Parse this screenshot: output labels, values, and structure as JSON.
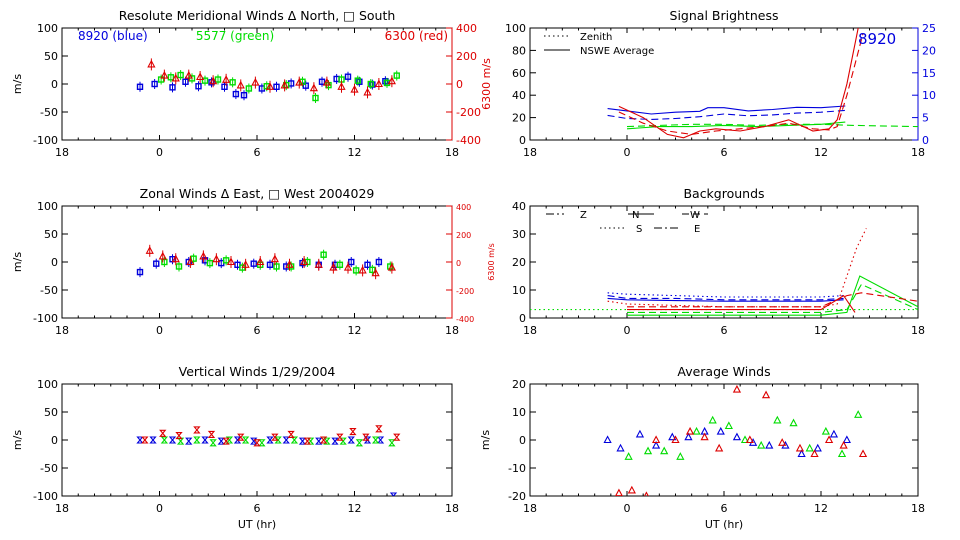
{
  "colors": {
    "blue": "#0000dd",
    "green": "#00dd00",
    "red": "#dd0000",
    "black": "#000000"
  },
  "chart_data": [
    {
      "id": "meridional",
      "type": "scatter",
      "title": "Resolute Meridional Winds Δ North, □ South",
      "ylabel": "m/s",
      "y2label": "6300 m/s",
      "ylim": [
        -100,
        100
      ],
      "y2lim": [
        -400,
        400
      ],
      "xlim": [
        -6,
        18
      ],
      "xticks": [
        "18",
        "0",
        "6",
        "12",
        "18"
      ],
      "yticks": [
        "100",
        "50",
        "0",
        "-50",
        "-100"
      ],
      "y2ticks": [
        "400",
        "200",
        "0",
        "-200",
        "-400"
      ],
      "legend": [
        {
          "label": "8920 (blue)",
          "color": "blue"
        },
        {
          "label": "5577 (green)",
          "color": "green"
        },
        {
          "label": "6300 (red)",
          "color": "red"
        }
      ],
      "series": [
        {
          "name": "8920 (blue)",
          "color": "blue",
          "marker": "square",
          "x": [
            -1.2,
            -0.3,
            0.8,
            1.6,
            2.4,
            3.2,
            4.0,
            4.7,
            5.2,
            6.3,
            7.2,
            8.1,
            9.0,
            10.0,
            10.9,
            11.6,
            12.3,
            13.1,
            13.9
          ],
          "y": [
            -5,
            0,
            -6,
            4,
            -4,
            3,
            -5,
            -18,
            -20,
            -8,
            -5,
            1,
            -3,
            4,
            9,
            13,
            4,
            -1,
            5
          ]
        },
        {
          "name": "5577 (green)",
          "color": "green",
          "marker": "square",
          "x": [
            0.1,
            0.7,
            1.3,
            2.0,
            2.8,
            3.6,
            4.5,
            5.5,
            6.6,
            7.8,
            8.8,
            9.6,
            10.4,
            11.2,
            12.2,
            13.0,
            14.0,
            14.6
          ],
          "y": [
            8,
            12,
            16,
            10,
            6,
            8,
            3,
            -8,
            -4,
            -2,
            4,
            -25,
            -2,
            8,
            6,
            0,
            2,
            15
          ]
        },
        {
          "name": "6300 (red)",
          "color": "red",
          "marker": "triangle",
          "x": [
            -0.5,
            0.3,
            1.0,
            1.8,
            2.5,
            3.3,
            4.1,
            5.0,
            5.9,
            6.8,
            7.7,
            8.6,
            9.5,
            10.3,
            11.2,
            12.0,
            12.8,
            13.5,
            14.3
          ],
          "y": [
            140,
            60,
            40,
            60,
            50,
            20,
            30,
            -10,
            10,
            -20,
            -10,
            10,
            -30,
            10,
            -20,
            -40,
            -60,
            0,
            20
          ]
        }
      ]
    },
    {
      "id": "brightness",
      "type": "line",
      "title": "Signal Brightness",
      "annotation": "8920",
      "ylim": [
        0,
        100
      ],
      "y2lim": [
        0,
        25
      ],
      "xlim": [
        -6,
        18
      ],
      "xticks": [
        "18",
        "0",
        "6",
        "12",
        "18"
      ],
      "yticks": [
        "100",
        "80",
        "60",
        "40",
        "20",
        "0"
      ],
      "y2ticks": [
        "25",
        "20",
        "15",
        "10",
        "5",
        "0"
      ],
      "legend": [
        {
          "label": "Zenith",
          "style": "dotted"
        },
        {
          "label": "NSWE Average",
          "style": "solid"
        }
      ],
      "series": [
        {
          "name": "8920 (blue)",
          "color": "blue",
          "axis": "right",
          "style": "solid",
          "x": [
            -1.2,
            0,
            1.5,
            3,
            4.5,
            5,
            6,
            7.5,
            9,
            10.5,
            12,
            13.5
          ],
          "y": [
            7,
            6.5,
            5.8,
            6.2,
            6.4,
            7.2,
            7.2,
            6.5,
            6.8,
            7.3,
            7.2,
            7.6
          ]
        },
        {
          "name": "8920 (blue)",
          "color": "blue",
          "axis": "right",
          "style": "dashed",
          "x": [
            -1.2,
            0,
            1.5,
            3,
            4.5,
            6,
            7.5,
            9,
            10.5,
            12,
            13.5
          ],
          "y": [
            5.5,
            4.8,
            4.6,
            4.8,
            5.2,
            5.8,
            5.4,
            5.6,
            6.0,
            6.2,
            6.6
          ]
        },
        {
          "name": "5577 (green)",
          "color": "green",
          "axis": "left",
          "style": "solid",
          "x": [
            0,
            2,
            4,
            6,
            8,
            10,
            12,
            13.5
          ],
          "y": [
            10,
            12,
            12,
            13,
            12,
            13,
            14,
            16
          ]
        },
        {
          "name": "5577 (green)",
          "color": "green",
          "axis": "left",
          "style": "dashed",
          "x": [
            0,
            2,
            4,
            6,
            8,
            10,
            12,
            14,
            18
          ],
          "y": [
            12,
            13,
            14,
            14,
            13,
            14,
            14,
            13,
            12
          ]
        },
        {
          "name": "6300 (red)",
          "color": "red",
          "axis": "left",
          "style": "solid",
          "x": [
            -0.5,
            1,
            2.5,
            3.5,
            4.5,
            5.5,
            7,
            8.5,
            10,
            11.5,
            12.5,
            13,
            13.6,
            14.3
          ],
          "y": [
            30,
            20,
            5,
            2,
            8,
            10,
            8,
            12,
            18,
            8,
            10,
            18,
            50,
            100
          ]
        },
        {
          "name": "6300 (red)",
          "color": "red",
          "axis": "left",
          "style": "dashed",
          "x": [
            -0.5,
            1,
            2.5,
            4,
            5.5,
            7,
            8.5,
            10,
            11.5,
            12.5,
            13,
            13.6,
            14.6
          ],
          "y": [
            25,
            15,
            8,
            5,
            8,
            10,
            12,
            15,
            10,
            9,
            12,
            40,
            95
          ]
        }
      ]
    },
    {
      "id": "zonal",
      "type": "scatter",
      "title": "Zonal Winds Δ East, □ West 2004029",
      "ylabel": "m/s",
      "y2label": "6300 m/s",
      "ylim": [
        -100,
        100
      ],
      "y2lim": [
        -400,
        400
      ],
      "xlim": [
        -6,
        18
      ],
      "xticks": [
        "18",
        "0",
        "6",
        "12",
        "18"
      ],
      "yticks": [
        "100",
        "50",
        "0",
        "-50",
        "-100"
      ],
      "y2ticks": [
        "400",
        "200",
        "0",
        "-200",
        "-400"
      ],
      "series": [
        {
          "name": "8920 (blue)",
          "color": "blue",
          "marker": "square",
          "x": [
            -1.2,
            -0.2,
            0.8,
            1.8,
            2.8,
            3.8,
            4.8,
            5.8,
            6.8,
            7.8,
            8.8,
            9.8,
            10.8,
            11.8,
            12.8,
            13.5
          ],
          "y": [
            -18,
            -3,
            5,
            0,
            3,
            -2,
            -5,
            -3,
            -5,
            -8,
            -2,
            -5,
            -5,
            0,
            -5,
            0
          ]
        },
        {
          "name": "5577 (green)",
          "color": "green",
          "marker": "square",
          "x": [
            0.3,
            1.2,
            2.1,
            3.1,
            4.1,
            5.1,
            6.2,
            7.2,
            8.1,
            9.1,
            10.1,
            11.1,
            12.1,
            13.1,
            14.2
          ],
          "y": [
            0,
            -8,
            6,
            -2,
            3,
            -10,
            -5,
            -8,
            -8,
            0,
            13,
            -5,
            -15,
            -14,
            -8
          ]
        },
        {
          "name": "6300 (red)",
          "color": "red",
          "marker": "triangle",
          "x": [
            -0.6,
            0.2,
            1.0,
            1.9,
            2.7,
            3.5,
            4.4,
            5.3,
            6.2,
            7.1,
            8.0,
            8.9,
            9.8,
            10.7,
            11.6,
            12.5,
            13.3,
            14.3
          ],
          "y": [
            80,
            40,
            20,
            0,
            40,
            20,
            0,
            -20,
            0,
            20,
            -20,
            0,
            -20,
            -40,
            -40,
            -60,
            -80,
            -40
          ]
        }
      ]
    },
    {
      "id": "backgrounds",
      "type": "line",
      "title": "Backgrounds",
      "ylim": [
        0,
        40
      ],
      "xlim": [
        -6,
        18
      ],
      "xticks": [
        "18",
        "0",
        "6",
        "12",
        "18"
      ],
      "yticks": [
        "40",
        "30",
        "20",
        "10",
        "0"
      ],
      "legend": [
        {
          "label": "Z",
          "style": "dashdotdot"
        },
        {
          "label": "N",
          "style": "solid"
        },
        {
          "label": "W",
          "style": "dashed"
        },
        {
          "label": "S",
          "style": "dotted"
        },
        {
          "label": "E",
          "style": "dashdot"
        }
      ],
      "series": [
        {
          "name": "8920 Z",
          "color": "blue",
          "style": "dotted",
          "x": [
            -1.2,
            0,
            3,
            6,
            9,
            12,
            13.4
          ],
          "y": [
            9,
            8.5,
            8,
            7.5,
            7.5,
            7.5,
            8
          ]
        },
        {
          "name": "8920 N",
          "color": "blue",
          "style": "solid",
          "x": [
            -1.2,
            0,
            3,
            6,
            9,
            12,
            13.4
          ],
          "y": [
            7,
            6.5,
            6.2,
            6,
            6,
            6,
            6.5
          ]
        },
        {
          "name": "8920 W",
          "color": "blue",
          "style": "dashed",
          "x": [
            -1.2,
            0,
            3,
            6,
            9,
            12,
            13.4
          ],
          "y": [
            8,
            7,
            7,
            6.5,
            6.5,
            6.5,
            7
          ]
        },
        {
          "name": "5577 Z",
          "color": "green",
          "style": "dotted",
          "x": [
            -6,
            0,
            6,
            12,
            18
          ],
          "y": [
            3,
            3,
            3,
            3,
            3
          ]
        },
        {
          "name": "5577 N",
          "color": "green",
          "style": "solid",
          "x": [
            0,
            6,
            12,
            13.6,
            14.4,
            18
          ],
          "y": [
            1,
            1,
            1,
            2,
            15,
            4
          ]
        },
        {
          "name": "5577 W",
          "color": "green",
          "style": "dashed",
          "x": [
            0,
            6,
            12,
            13.6,
            14.5,
            18
          ],
          "y": [
            2,
            2,
            2,
            3,
            12,
            3
          ]
        },
        {
          "name": "6300 Z",
          "color": "red",
          "style": "dotted",
          "x": [
            -1.2,
            0,
            6,
            12,
            13,
            13.6,
            14.2,
            14.8
          ],
          "y": [
            6,
            5,
            4,
            4,
            5,
            15,
            25,
            32
          ]
        },
        {
          "name": "6300 N",
          "color": "red",
          "style": "solid",
          "x": [
            0,
            6,
            12,
            13.4,
            14.1
          ],
          "y": [
            3,
            3,
            3,
            8,
            2
          ]
        },
        {
          "name": "6300 W",
          "color": "red",
          "style": "dashed",
          "x": [
            0,
            6,
            12,
            13.6,
            14.5,
            18
          ],
          "y": [
            4,
            4,
            4,
            8,
            9,
            6
          ]
        }
      ]
    },
    {
      "id": "vertical",
      "type": "scatter",
      "title": "Vertical Winds 1/29/2004",
      "ylabel": "m/s",
      "xlabel": "UT (hr)",
      "ylim": [
        -100,
        100
      ],
      "xlim": [
        -6,
        18
      ],
      "xticks": [
        "18",
        "0",
        "6",
        "12",
        "18"
      ],
      "yticks": [
        "100",
        "50",
        "0",
        "-50",
        "-100"
      ],
      "series": [
        {
          "name": "8920 (blue)",
          "color": "blue",
          "marker": "hourglass",
          "x": [
            -1.2,
            -0.4,
            0.8,
            1.8,
            2.8,
            3.8,
            4.8,
            5.8,
            6.8,
            7.8,
            8.8,
            9.8,
            10.8,
            11.8,
            12.8,
            13.6,
            14.4
          ],
          "y": [
            0,
            0,
            0,
            -2,
            0,
            -2,
            0,
            -2,
            0,
            0,
            -2,
            -2,
            -2,
            0,
            0,
            0,
            -100
          ]
        },
        {
          "name": "5577 (green)",
          "color": "green",
          "marker": "hourglass",
          "x": [
            0.3,
            1.3,
            2.3,
            3.3,
            4.3,
            5.3,
            6.3,
            7.3,
            8.3,
            9.3,
            10.3,
            11.3,
            12.3,
            13.3,
            14.3
          ],
          "y": [
            0,
            -2,
            0,
            -5,
            0,
            0,
            -5,
            0,
            0,
            -2,
            -2,
            -2,
            -5,
            0,
            -5
          ]
        },
        {
          "name": "6300 (red)",
          "color": "red",
          "marker": "hourglass",
          "x": [
            -0.9,
            0.2,
            1.2,
            2.3,
            3.2,
            4.1,
            5.0,
            6.0,
            7.1,
            8.1,
            9.1,
            10.1,
            11.1,
            11.9,
            12.7,
            13.5,
            14.6
          ],
          "y": [
            0,
            12,
            8,
            18,
            10,
            -2,
            5,
            -5,
            5,
            10,
            -2,
            0,
            5,
            15,
            5,
            20,
            5
          ]
        }
      ]
    },
    {
      "id": "average",
      "type": "scatter",
      "title": "Average Winds",
      "ylabel": "m/s",
      "xlabel": "UT (hr)",
      "ylim": [
        -20,
        20
      ],
      "xlim": [
        -6,
        18
      ],
      "xticks": [
        "18",
        "0",
        "6",
        "12",
        "18"
      ],
      "yticks": [
        "20",
        "10",
        "0",
        "-10",
        "-20"
      ],
      "series": [
        {
          "name": "8920 (blue)",
          "color": "blue",
          "marker": "triangle",
          "x": [
            -1.2,
            -0.4,
            0.8,
            1.8,
            2.8,
            3.8,
            4.8,
            5.8,
            6.8,
            7.8,
            8.8,
            9.8,
            10.8,
            11.8,
            12.8,
            13.6
          ],
          "y": [
            0,
            -3,
            2,
            -2,
            1,
            1,
            3,
            3,
            1,
            -1,
            -2,
            -2,
            -5,
            -3,
            2,
            0
          ]
        },
        {
          "name": "5577 (green)",
          "color": "green",
          "marker": "triangle",
          "x": [
            0.1,
            1.3,
            2.3,
            3.3,
            4.3,
            5.3,
            6.3,
            7.3,
            8.3,
            9.3,
            10.3,
            11.3,
            12.3,
            13.3,
            14.3
          ],
          "y": [
            -6,
            -4,
            -4,
            -6,
            3,
            7,
            5,
            0,
            -2,
            7,
            6,
            -3,
            3,
            -5,
            9
          ]
        },
        {
          "name": "6300 (red)",
          "color": "red",
          "marker": "triangle",
          "x": [
            -0.5,
            0.3,
            1.2,
            1.8,
            3.0,
            3.9,
            4.8,
            5.7,
            6.8,
            7.6,
            8.6,
            9.6,
            10.7,
            11.6,
            12.5,
            13.4,
            14.6
          ],
          "y": [
            -19,
            -18,
            -20,
            0,
            0,
            3,
            1,
            -3,
            18,
            0,
            16,
            -1,
            -3,
            -5,
            0,
            -2,
            -5
          ]
        }
      ]
    }
  ]
}
